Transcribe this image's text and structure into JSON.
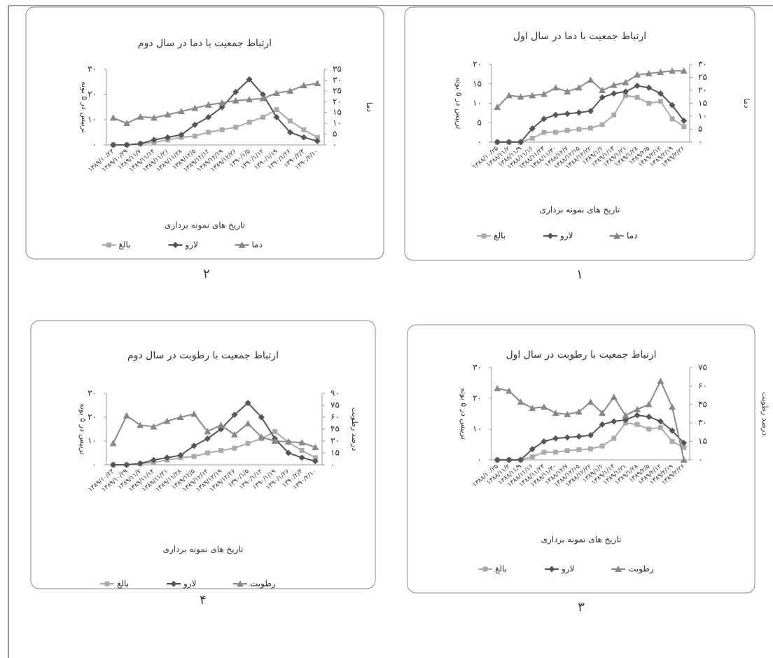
{
  "chart_data": [
    {
      "type": "line",
      "panel": "۱",
      "title": "ارتباط جمعیت با دما در سال اول",
      "x_label": "تاریخ های نمونه برداری",
      "y_label": "تریپس در ۵ بوته",
      "y2_label": "دما",
      "categories": [
        "۱۳۸۸/۱۰/۲۵",
        "۱۳۸۸/۱۱/۲",
        "۱۳۸۸/۱۱/۹",
        "۱۳۸۸/۱۱/۱۶",
        "۱۳۸۸/۱۱/۲۳",
        "۱۳۸۸/۱۱/۳۰",
        "۱۳۸۸/۱۲/۷",
        "۱۳۸۸/۱۲/۱۵",
        "۱۳۸۸/۱۲/۲۲",
        "۱۳۸۹/۱/۶",
        "۱۳۸۹/۱/۱۳",
        "۱۳۸۹/۱/۲۱",
        "۱۳۸۹/۱/۲۸",
        "۱۳۸۹/۲/۵",
        "۱۳۸۹/۲/۱۲",
        "۱۳۸۹/۲/۱۹",
        "۱۳۸۹/۲/۲۶"
      ],
      "series": [
        {
          "name": "بالغ",
          "color": "#aaaaaa",
          "marker": "square",
          "values": [
            0,
            0,
            0,
            1,
            2.5,
            2.5,
            3,
            3.3,
            3.6,
            4.5,
            7,
            12,
            11.5,
            10,
            10.5,
            6,
            4
          ]
        },
        {
          "name": "لارو",
          "color": "#555555",
          "marker": "diamond",
          "values": [
            0,
            0,
            0,
            3.5,
            6,
            7,
            7.3,
            7.6,
            8,
            11.5,
            12.5,
            13,
            14.5,
            14,
            12.5,
            9.5,
            5.5
          ]
        },
        {
          "name": "دما",
          "color": "#888888",
          "marker": "triangle",
          "axis": "y2",
          "values": [
            13.5,
            18,
            17.5,
            18,
            18.5,
            21,
            19.5,
            21,
            24,
            20,
            22,
            23,
            26,
            26.5,
            27,
            27.5,
            27.5
          ]
        }
      ],
      "ylim": [
        0,
        20
      ],
      "yticks": [
        {
          "value": 0,
          "label": "۰"
        },
        {
          "value": 5,
          "label": "۵"
        },
        {
          "value": 10,
          "label": "۱۰"
        },
        {
          "value": 15,
          "label": "۱۵"
        },
        {
          "value": 20,
          "label": "۲۰"
        }
      ],
      "y2lim": [
        0,
        30
      ],
      "y2ticks": [
        {
          "value": 0,
          "label": "۰"
        },
        {
          "value": 5,
          "label": "۵"
        },
        {
          "value": 10,
          "label": "۱۰"
        },
        {
          "value": 15,
          "label": "۱۵"
        },
        {
          "value": 20,
          "label": "۲۰"
        },
        {
          "value": 25,
          "label": "۲۵"
        },
        {
          "value": 30,
          "label": "۳۰"
        }
      ]
    },
    {
      "type": "line",
      "panel": "۲",
      "title": "ارتباط جمعیت با دما در سال دوم",
      "x_label": "تاریخ های نمونه برداری",
      "y_label": "تریپس در ۵ بوته",
      "y2_label": "دما",
      "categories": [
        "۱۳۸۹/۱۰/۲۳",
        "۱۳۸۹/۱۰/۲۹",
        "۱۳۸۹/۱۱/۷",
        "۱۳۸۹/۱۱/۱۴",
        "۱۳۸۹/۱۱/۲۱",
        "۱۳۸۹/۱۱/۲۸",
        "۱۳۸۹/۱۲/۵",
        "۱۳۸۹/۱۲/۱۲",
        "۱۳۸۹/۱۲/۱۹",
        "۱۳۸۹/۱۲/۲۶",
        "۱۳۹۰/۱/۵",
        "۱۳۹۰/۱/۱۲",
        "۱۳۹۰/۱/۱۹",
        "۱۳۹۰/۱/۲۶",
        "۱۳۹۰/۲/۳",
        "۱۳۹۰/۲/۱۰"
      ],
      "series": [
        {
          "name": "بالغ",
          "color": "#aaaaaa",
          "marker": "square",
          "values": [
            0,
            0,
            0.5,
            1,
            2,
            3,
            3.5,
            5,
            6,
            7,
            9,
            11,
            14,
            9.5,
            6,
            3
          ]
        },
        {
          "name": "لارو",
          "color": "#555555",
          "marker": "diamond",
          "values": [
            0,
            0,
            0.5,
            2,
            3,
            4,
            8,
            11,
            15,
            21,
            26,
            20,
            11,
            5,
            3,
            1.5
          ]
        },
        {
          "name": "دما",
          "color": "#888888",
          "marker": "triangle",
          "axis": "y2",
          "values": [
            12.5,
            10,
            13,
            12.5,
            14,
            15.5,
            17,
            18.5,
            19.5,
            20.5,
            21,
            21.5,
            24,
            25,
            27.5,
            28.5
          ]
        }
      ],
      "ylim": [
        0,
        30
      ],
      "yticks": [
        {
          "value": 0,
          "label": "۰"
        },
        {
          "value": 10,
          "label": "۱۰"
        },
        {
          "value": 20,
          "label": "۲۰"
        },
        {
          "value": 30,
          "label": "۳۰"
        }
      ],
      "y2lim": [
        0,
        35
      ],
      "y2ticks": [
        {
          "value": 0,
          "label": "۰"
        },
        {
          "value": 5,
          "label": "۵"
        },
        {
          "value": 10,
          "label": "۱۰"
        },
        {
          "value": 15,
          "label": "۱۵"
        },
        {
          "value": 20,
          "label": "۲۰"
        },
        {
          "value": 25,
          "label": "۲۵"
        },
        {
          "value": 30,
          "label": "۳۰"
        },
        {
          "value": 35,
          "label": "۳۵"
        }
      ]
    },
    {
      "type": "line",
      "panel": "۳",
      "title": "ارتباط جمعیت با رطوبت در سال اول",
      "x_label": "تاریخ های نمونه برداری",
      "y_label": "تریپس در ۵ بوته",
      "y2_label": "درصد رطوبت",
      "categories": [
        "۱۳۸۸/۱۰/۲۵",
        "۱۳۸۸/۱۱/۲",
        "۱۳۸۸/۱۱/۹",
        "۱۳۸۸/۱۱/۱۶",
        "۱۳۸۸/۱۱/۲۳",
        "۱۳۸۸/۱۱/۳۰",
        "۱۳۸۸/۱۲/۷",
        "۱۳۸۸/۱۲/۱۵",
        "۱۳۸۸/۱۲/۲۲",
        "۱۳۸۹/۱/۶",
        "۱۳۸۹/۱/۱۳",
        "۱۳۸۹/۱/۲۱",
        "۱۳۸۹/۱/۲۸",
        "۱۳۸۹/۲/۵",
        "۱۳۸۹/۲/۱۲",
        "۱۳۸۹/۲/۱۹",
        "۱۳۸۹/۲/۲۶"
      ],
      "series": [
        {
          "name": "بالغ",
          "color": "#aaaaaa",
          "marker": "square",
          "values": [
            0,
            0,
            0,
            1,
            2.5,
            2.5,
            3,
            3.3,
            3.6,
            4.5,
            7,
            12,
            11.5,
            10,
            10.5,
            6,
            4
          ]
        },
        {
          "name": "لارو",
          "color": "#555555",
          "marker": "diamond",
          "values": [
            0,
            0,
            0,
            3.5,
            6,
            7,
            7.3,
            7.6,
            8,
            11.5,
            12.5,
            13,
            14.5,
            14,
            12.5,
            9.5,
            5.5
          ]
        },
        {
          "name": "رطوبت",
          "color": "#888888",
          "marker": "triangle",
          "axis": "y2",
          "values": [
            58,
            56,
            47,
            42,
            43,
            38,
            37,
            39,
            47,
            38,
            51,
            36,
            41,
            45,
            64,
            43,
            0
          ]
        }
      ],
      "ylim": [
        0,
        30
      ],
      "yticks": [
        {
          "value": 0,
          "label": "۰"
        },
        {
          "value": 10,
          "label": "۱۰"
        },
        {
          "value": 20,
          "label": "۲۰"
        },
        {
          "value": 30,
          "label": "۳۰"
        }
      ],
      "y2lim": [
        0,
        75
      ],
      "y2ticks": [
        {
          "value": 0,
          "label": "۰"
        },
        {
          "value": 15,
          "label": "۱۵"
        },
        {
          "value": 30,
          "label": "۳۰"
        },
        {
          "value": 45,
          "label": "۴۵"
        },
        {
          "value": 60,
          "label": "۶۰"
        },
        {
          "value": 75,
          "label": "۷۵"
        }
      ]
    },
    {
      "type": "line",
      "panel": "۴",
      "title": "ارتباط جمعیت با رطوبت در سال دوم",
      "x_label": "تاریخ های نمونه برداری",
      "y_label": "تریپس در ۵ بوته",
      "y2_label": "درصد رطوبت",
      "categories": [
        "۱۳۸۹/۱۰/۲۳",
        "۱۳۸۹/۱۰/۲۹",
        "۱۳۸۹/۱۱/۷",
        "۱۳۸۹/۱۱/۱۴",
        "۱۳۸۹/۱۱/۲۱",
        "۱۳۸۹/۱۱/۲۸",
        "۱۳۸۹/۱۲/۵",
        "۱۳۸۹/۱۲/۱۲",
        "۱۳۸۹/۱۲/۱۹",
        "۱۳۸۹/۱۲/۲۶",
        "۱۳۹۰/۱/۵",
        "۱۳۹۰/۱/۱۲",
        "۱۳۹۰/۱/۱۹",
        "۱۳۹۰/۱/۲۶",
        "۱۳۹۰/۲/۳",
        "۱۳۹۰/۲/۱۰"
      ],
      "series": [
        {
          "name": "بالغ",
          "color": "#aaaaaa",
          "marker": "square",
          "values": [
            0,
            0,
            0.5,
            1,
            2,
            3,
            3.5,
            5,
            6,
            7,
            9,
            11,
            14,
            9.5,
            6,
            3
          ]
        },
        {
          "name": "لارو",
          "color": "#555555",
          "marker": "diamond",
          "values": [
            0,
            0,
            0.5,
            2,
            3,
            4,
            8,
            11,
            15,
            21,
            26,
            20,
            11,
            5,
            3,
            1.5
          ]
        },
        {
          "name": "رطوبت",
          "color": "#888888",
          "marker": "triangle",
          "axis": "y2",
          "values": [
            27,
            62,
            50,
            48,
            55,
            60,
            64,
            42,
            50,
            38,
            52,
            35,
            30,
            29,
            28,
            22
          ]
        }
      ],
      "ylim": [
        0,
        30
      ],
      "yticks": [
        {
          "value": 0,
          "label": "۰"
        },
        {
          "value": 10,
          "label": "۱۰"
        },
        {
          "value": 20,
          "label": "۲۰"
        },
        {
          "value": 30,
          "label": "۳۰"
        }
      ],
      "y2lim": [
        0,
        90
      ],
      "y2ticks": [
        {
          "value": 0,
          "label": "۰"
        },
        {
          "value": 15,
          "label": "۱۵"
        },
        {
          "value": 30,
          "label": "۳۰"
        },
        {
          "value": 45,
          "label": "۴۵"
        },
        {
          "value": 60,
          "label": "۶۰"
        },
        {
          "value": 75,
          "label": "۷۵"
        },
        {
          "value": 90,
          "label": "۹۰"
        }
      ]
    }
  ]
}
